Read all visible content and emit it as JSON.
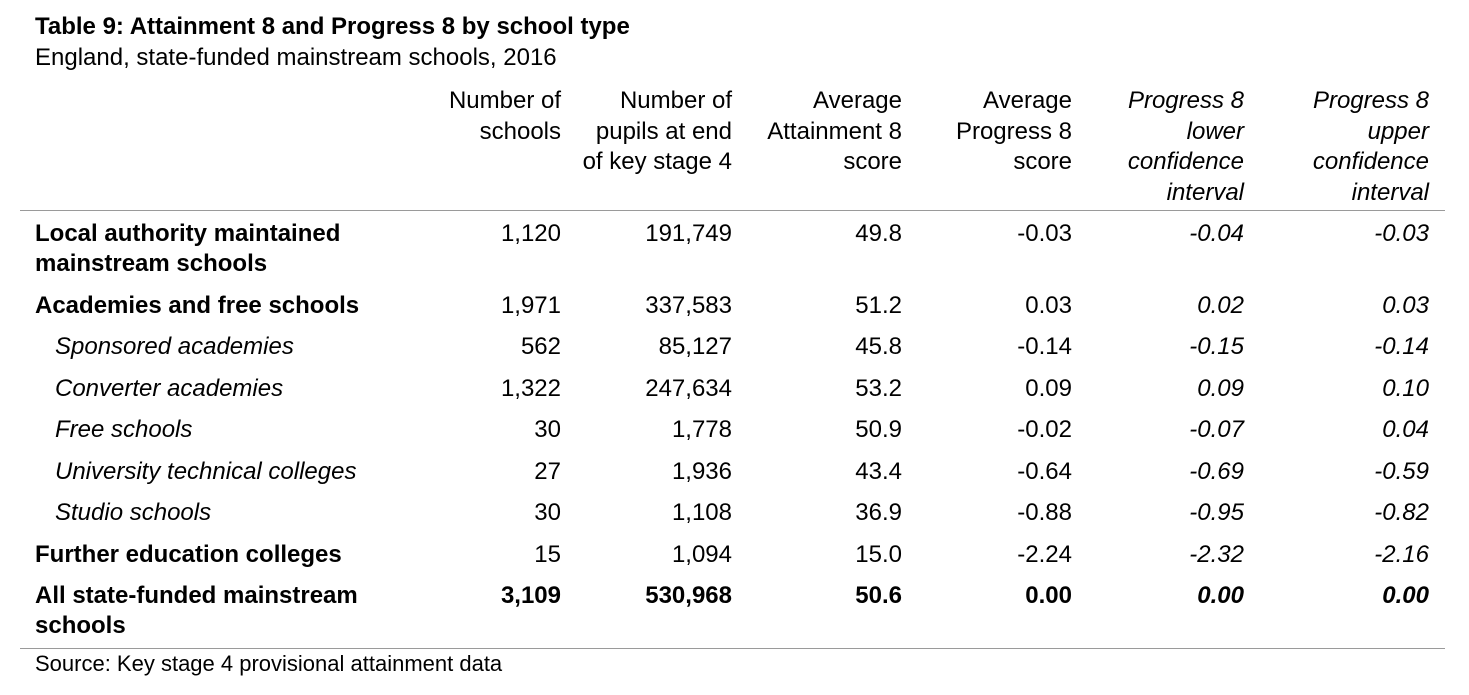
{
  "title": "Table 9: Attainment 8 and Progress 8 by school type",
  "subtitle": "England, state-funded mainstream schools, 2016",
  "columns": [
    "Number of schools",
    "Number of pupils at end of key stage 4",
    "Average Attainment 8 score",
    "Average Progress 8 score",
    "Progress 8 lower confidence interval",
    "Progress 8 upper confidence interval"
  ],
  "rows": [
    {
      "name": "Local authority maintained mainstream schools",
      "schools": "1,120",
      "pupils": "191,749",
      "attainment": "49.8",
      "progress": "-0.03",
      "lower": "-0.04",
      "upper": "-0.03"
    },
    {
      "name": "Academies and free schools",
      "schools": "1,971",
      "pupils": "337,583",
      "attainment": "51.2",
      "progress": "0.03",
      "lower": "0.02",
      "upper": "0.03"
    },
    {
      "name": "Sponsored academies",
      "schools": "562",
      "pupils": "85,127",
      "attainment": "45.8",
      "progress": "-0.14",
      "lower": "-0.15",
      "upper": "-0.14"
    },
    {
      "name": "Converter academies",
      "schools": "1,322",
      "pupils": "247,634",
      "attainment": "53.2",
      "progress": "0.09",
      "lower": "0.09",
      "upper": "0.10"
    },
    {
      "name": "Free schools",
      "schools": "30",
      "pupils": "1,778",
      "attainment": "50.9",
      "progress": "-0.02",
      "lower": "-0.07",
      "upper": "0.04"
    },
    {
      "name": "University technical colleges",
      "schools": "27",
      "pupils": "1,936",
      "attainment": "43.4",
      "progress": "-0.64",
      "lower": "-0.69",
      "upper": "-0.59"
    },
    {
      "name": "Studio schools",
      "schools": "30",
      "pupils": "1,108",
      "attainment": "36.9",
      "progress": "-0.88",
      "lower": "-0.95",
      "upper": "-0.82"
    },
    {
      "name": "Further education colleges",
      "schools": "15",
      "pupils": "1,094",
      "attainment": "15.0",
      "progress": "-2.24",
      "lower": "-2.32",
      "upper": "-2.16"
    },
    {
      "name": "All state-funded mainstream schools",
      "schools": "3,109",
      "pupils": "530,968",
      "attainment": "50.6",
      "progress": "0.00",
      "lower": "0.00",
      "upper": "0.00"
    }
  ],
  "source": "Source: Key stage 4 provisional attainment data"
}
